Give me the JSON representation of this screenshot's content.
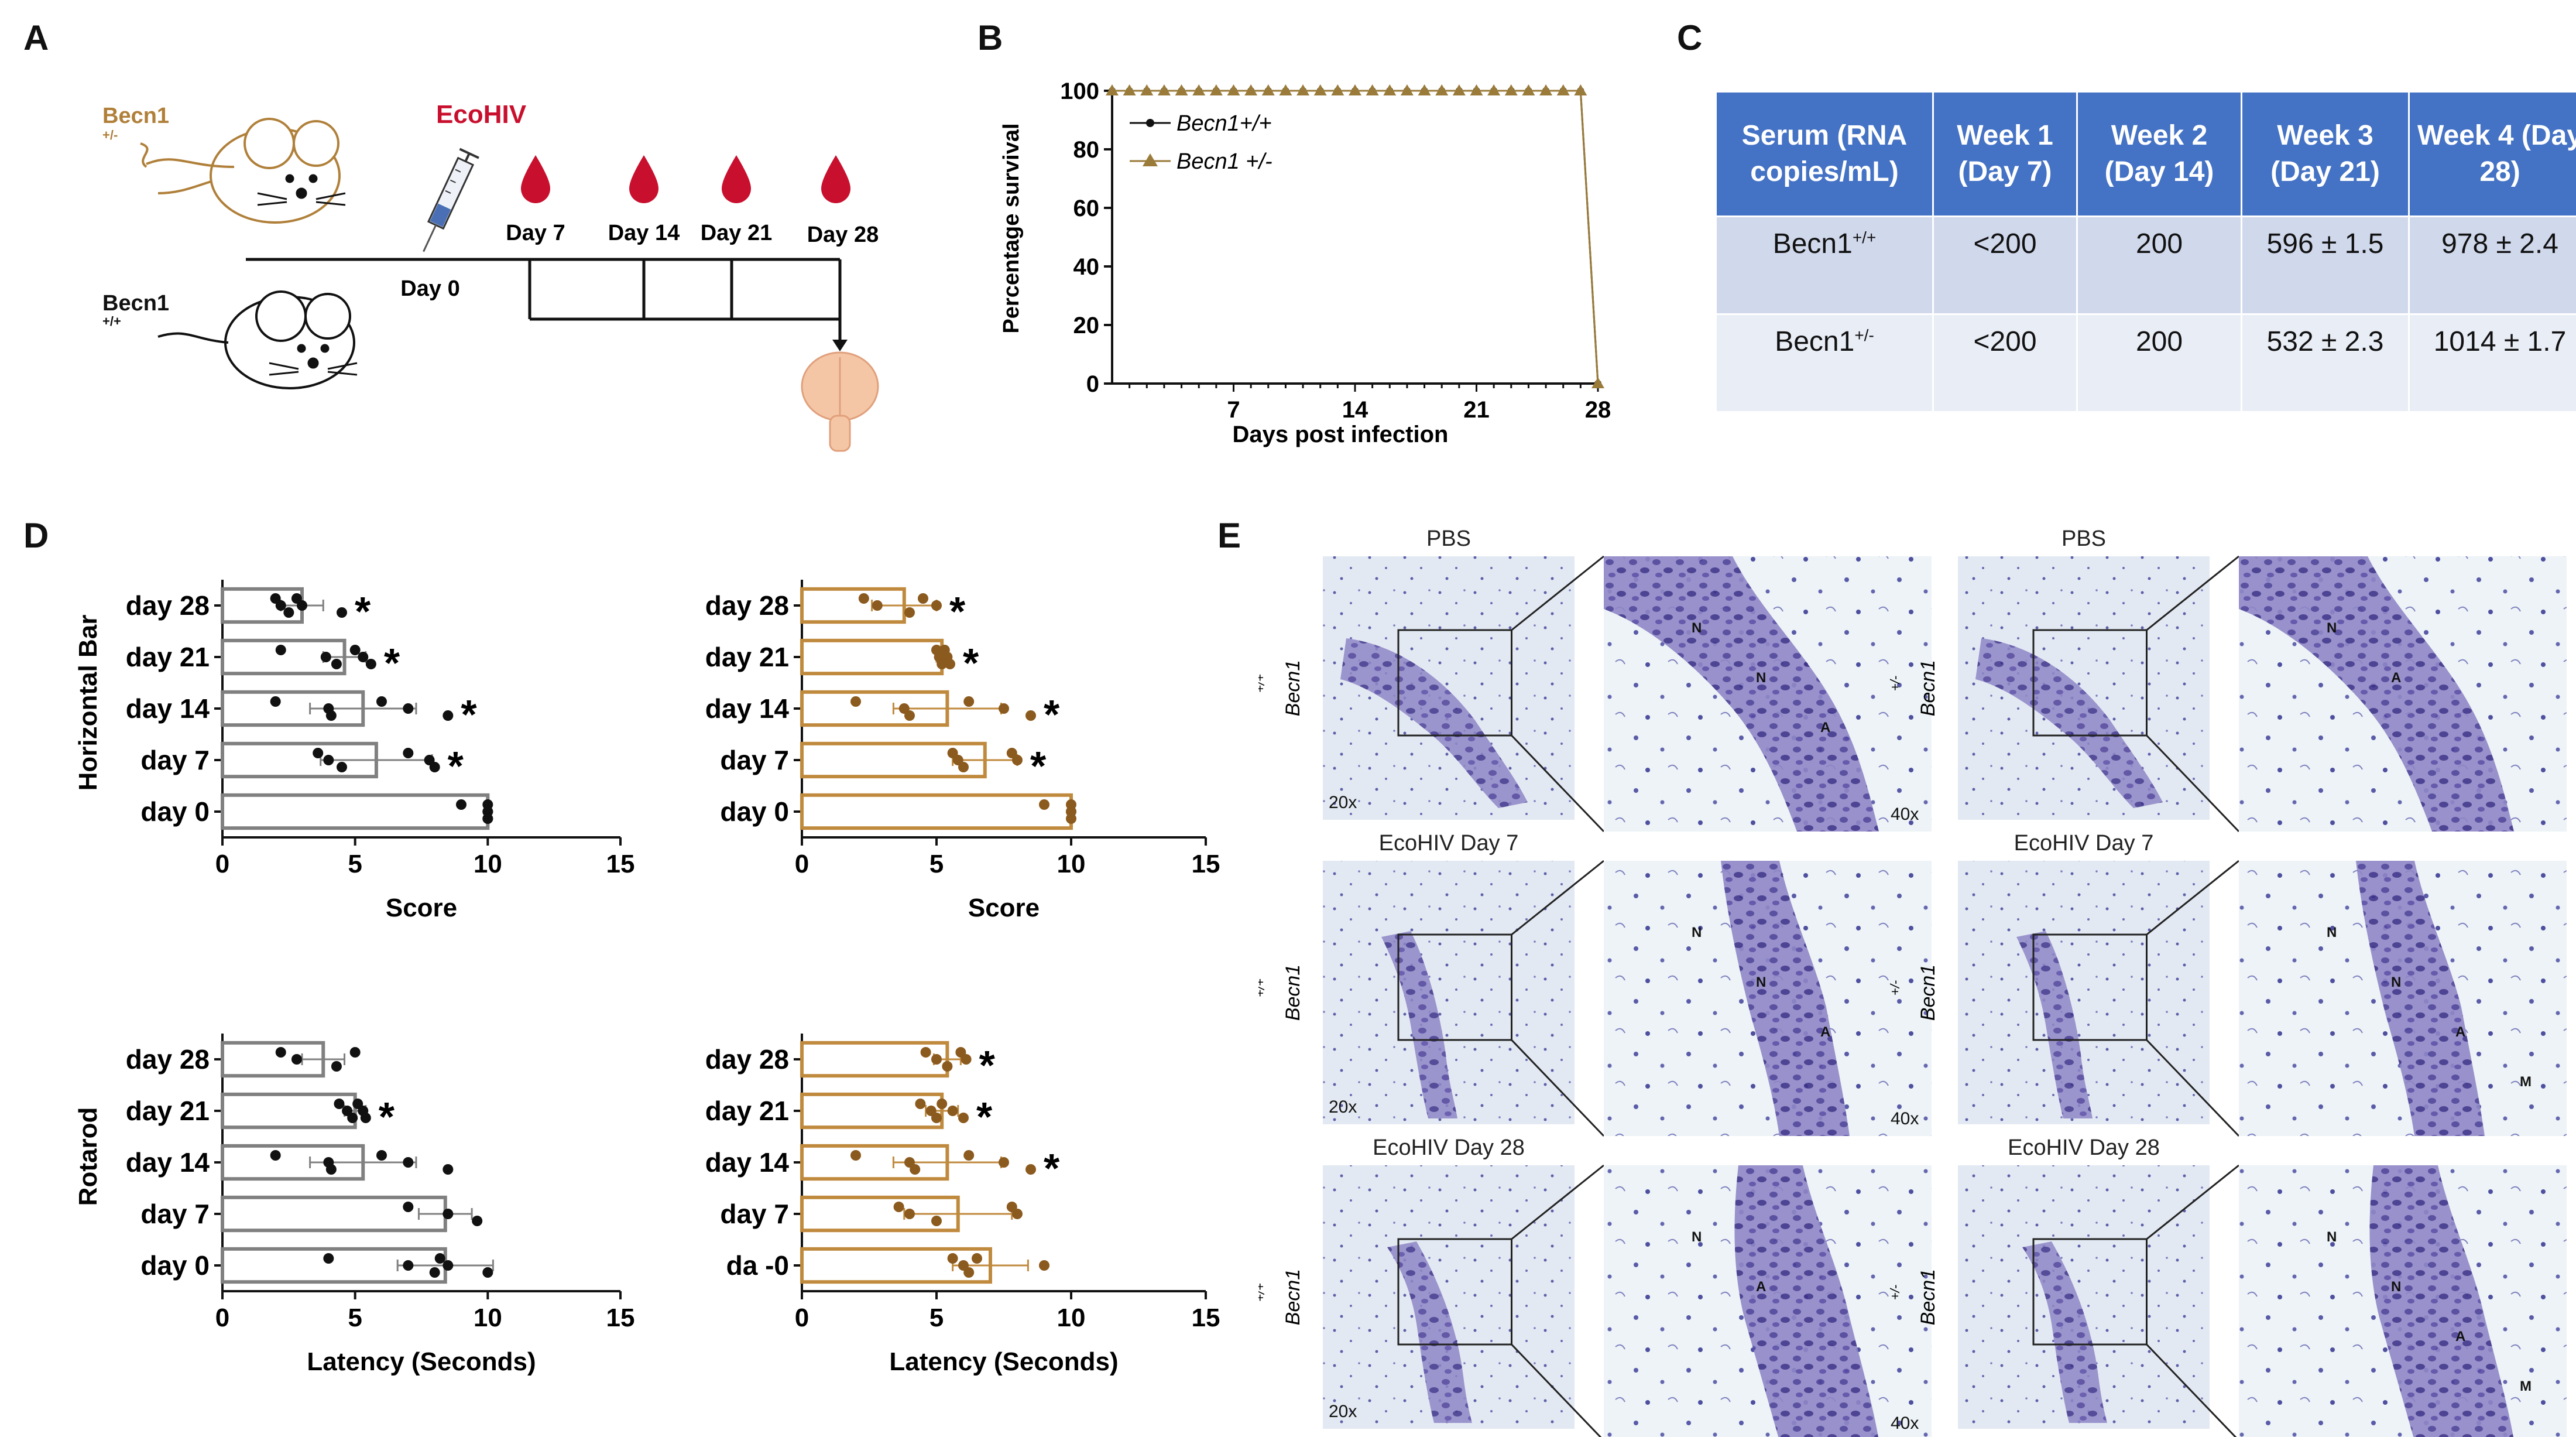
{
  "colors": {
    "wt": "#808080",
    "het": "#c08a3e",
    "het_text": "#b0803a",
    "ecohiv": "#c8102e",
    "table_header": "#4472c4",
    "table_row1": "#d0d8ec",
    "table_row2": "#e9edf6",
    "blood": "#c8102e"
  },
  "panels": {
    "a": "A",
    "b": "B",
    "c": "C",
    "d": "D",
    "e": "E"
  },
  "panel_a": {
    "mouse_het_label": "Becn1",
    "mouse_het_sup": "+/-",
    "mouse_wt_label": "Becn1",
    "mouse_wt_sup": "+/+",
    "injection_label": "EcoHIV",
    "day0": "Day 0",
    "days": [
      "Day 7",
      "Day 14",
      "Day 21",
      "Day 28"
    ]
  },
  "panel_c": {
    "headers": [
      "Serum (RNA copies/mL)",
      "Week 1 (Day 7)",
      "Week 2 (Day 14)",
      "Week 3 (Day 21)",
      "Week 4 (Day 28)"
    ],
    "rows": [
      {
        "label": "Becn1",
        "sup": "+/+",
        "cells": [
          "<200",
          "200",
          "596  ± 1.5",
          "978  ± 2.4"
        ]
      },
      {
        "label": "Becn1",
        "sup": "+/-",
        "cells": [
          "<200",
          "200",
          "532  ± 2.3",
          "1014  ± 1.7"
        ]
      }
    ]
  },
  "chart_data": [
    {
      "type": "line",
      "panel": "B",
      "xlabel": "Days post infection",
      "ylabel": "Percentage survival",
      "xticks": [
        7,
        14,
        21,
        28
      ],
      "yticks": [
        0,
        20,
        40,
        60,
        80,
        100
      ],
      "xlim": [
        0,
        28
      ],
      "ylim": [
        0,
        100
      ],
      "series": [
        {
          "name": "Becn1+/+",
          "marker": "circle",
          "color": "#111111",
          "x": [
            0,
            1,
            2,
            3,
            4,
            5,
            6,
            7,
            8,
            9,
            10,
            11,
            12,
            13,
            14,
            15,
            16,
            17,
            18,
            19,
            20,
            21,
            22,
            23,
            24,
            25,
            26,
            27,
            28
          ],
          "values": [
            100,
            100,
            100,
            100,
            100,
            100,
            100,
            100,
            100,
            100,
            100,
            100,
            100,
            100,
            100,
            100,
            100,
            100,
            100,
            100,
            100,
            100,
            100,
            100,
            100,
            100,
            100,
            100,
            0
          ]
        },
        {
          "name": "Becn1 +/-",
          "marker": "triangle",
          "color": "#9a7b3a",
          "x": [
            0,
            1,
            2,
            3,
            4,
            5,
            6,
            7,
            8,
            9,
            10,
            11,
            12,
            13,
            14,
            15,
            16,
            17,
            18,
            19,
            20,
            21,
            22,
            23,
            24,
            25,
            26,
            27,
            28
          ],
          "values": [
            100,
            100,
            100,
            100,
            100,
            100,
            100,
            100,
            100,
            100,
            100,
            100,
            100,
            100,
            100,
            100,
            100,
            100,
            100,
            100,
            100,
            100,
            100,
            100,
            100,
            100,
            100,
            100,
            0
          ]
        }
      ]
    },
    {
      "type": "bar",
      "orientation": "horizontal",
      "panel": "D",
      "genotype": "Becn1+/+",
      "test": "Horizontal Bar",
      "ylabel_group": "Horizontal Bar",
      "xlabel": "Score",
      "xlim": [
        0,
        15
      ],
      "xticks": [
        0,
        5,
        10,
        15
      ],
      "categories": [
        "day 28",
        "day 21",
        "day 14",
        "day 7",
        "day 0"
      ],
      "values": [
        3.0,
        4.6,
        5.3,
        5.8,
        10.0
      ],
      "errors": [
        0.8,
        0.8,
        2.0,
        2.1,
        0.0
      ],
      "points": [
        [
          2.0,
          2.2,
          2.5,
          2.8,
          3.0,
          4.5
        ],
        [
          2.2,
          3.9,
          4.3,
          5.0,
          5.3,
          5.6
        ],
        [
          2.0,
          4.0,
          4.1,
          6.0,
          7.0,
          8.5
        ],
        [
          3.6,
          4.0,
          4.5,
          7.0,
          7.8,
          8.0
        ],
        [
          9.0,
          10.0,
          10.0,
          10.0,
          10.0,
          10.0
        ]
      ],
      "significant": [
        true,
        true,
        true,
        true,
        false
      ],
      "sig_mark": "*",
      "color": "#808080"
    },
    {
      "type": "bar",
      "orientation": "horizontal",
      "panel": "D",
      "genotype": "Becn1+/-",
      "test": "Horizontal Bar",
      "xlabel": "Score",
      "xlim": [
        0,
        15
      ],
      "xticks": [
        0,
        5,
        10,
        15
      ],
      "categories": [
        "day 28",
        "day 21",
        "day 14",
        "day 7",
        "day 0"
      ],
      "values": [
        3.8,
        5.2,
        5.4,
        6.8,
        10.0
      ],
      "errors": [
        1.2,
        0.2,
        2.0,
        1.2,
        0.0
      ],
      "points": [
        [
          2.3,
          2.8,
          4.0,
          4.5,
          5.0
        ],
        [
          5.0,
          5.1,
          5.2,
          5.3,
          5.4,
          5.5
        ],
        [
          2.0,
          3.8,
          4.0,
          6.2,
          7.5,
          8.5
        ],
        [
          5.6,
          5.8,
          6.0,
          7.8,
          8.0
        ],
        [
          9.0,
          10.0,
          10.0,
          10.0,
          10.0
        ]
      ],
      "significant": [
        true,
        true,
        true,
        true,
        false
      ],
      "sig_mark": "*",
      "color": "#c08a3e"
    },
    {
      "type": "bar",
      "orientation": "horizontal",
      "panel": "D",
      "genotype": "Becn1+/+",
      "test": "Rotarod",
      "ylabel_group": "Rotarod",
      "xlabel": "Latency (Seconds)",
      "xlim": [
        0,
        15
      ],
      "xticks": [
        0,
        5,
        10,
        15
      ],
      "categories": [
        "day 28",
        "day 21",
        "day 14",
        "day 7",
        "day 0"
      ],
      "values": [
        3.8,
        5.0,
        5.3,
        8.4,
        8.4
      ],
      "errors": [
        0.8,
        0.4,
        2.0,
        1.0,
        1.8
      ],
      "points": [
        [
          2.2,
          2.8,
          4.3,
          5.0
        ],
        [
          4.4,
          4.7,
          4.9,
          5.1,
          5.3,
          5.4
        ],
        [
          2.0,
          4.0,
          4.1,
          6.0,
          7.0,
          8.5
        ],
        [
          7.0,
          8.5,
          9.6
        ],
        [
          4.0,
          7.0,
          8.0,
          8.2,
          8.5,
          10.0
        ]
      ],
      "significant": [
        false,
        true,
        false,
        false,
        false
      ],
      "sig_mark": "*",
      "color": "#808080"
    },
    {
      "type": "bar",
      "orientation": "horizontal",
      "panel": "D",
      "genotype": "Becn1+/-",
      "test": "Rotarod",
      "xlabel": "Latency (Seconds)",
      "xlim": [
        0,
        15
      ],
      "xticks": [
        0,
        5,
        10,
        15
      ],
      "categories": [
        "day 28",
        "day 21",
        "day 14",
        "day 7",
        "da -0"
      ],
      "values": [
        5.4,
        5.2,
        5.4,
        5.8,
        7.0
      ],
      "errors": [
        0.5,
        0.6,
        2.0,
        2.0,
        1.4
      ],
      "points": [
        [
          4.6,
          5.0,
          5.4,
          5.9,
          6.1
        ],
        [
          4.4,
          4.8,
          5.0,
          5.2,
          5.6,
          6.0
        ],
        [
          2.0,
          4.0,
          4.2,
          6.2,
          7.5,
          8.5
        ],
        [
          3.6,
          4.0,
          5.0,
          7.8,
          8.0
        ],
        [
          5.6,
          6.0,
          6.2,
          6.5,
          9.0
        ]
      ],
      "significant": [
        true,
        true,
        true,
        false,
        false
      ],
      "sig_mark": "*",
      "color": "#c08a3e"
    }
  ],
  "panel_e": {
    "magnifications": {
      "low": "20x",
      "high": "40x"
    },
    "columns": [
      {
        "genotype": "Becn1",
        "sup": "+/+",
        "rows": [
          {
            "title": "PBS",
            "marks": [
              "N",
              "N",
              "A"
            ]
          },
          {
            "title": "EcoHIV Day 7",
            "marks": [
              "N",
              "N",
              "A"
            ]
          },
          {
            "title": "EcoHIV Day 28",
            "marks": [
              "N",
              "A"
            ]
          }
        ]
      },
      {
        "genotype": "Becn1",
        "sup": "+/-",
        "rows": [
          {
            "title": "PBS",
            "marks": [
              "N",
              "A"
            ]
          },
          {
            "title": "EcoHIV Day 7",
            "marks": [
              "N",
              "N",
              "A",
              "M"
            ]
          },
          {
            "title": "EcoHIV Day 28",
            "marks": [
              "N",
              "N",
              "A",
              "M"
            ]
          }
        ]
      }
    ]
  }
}
